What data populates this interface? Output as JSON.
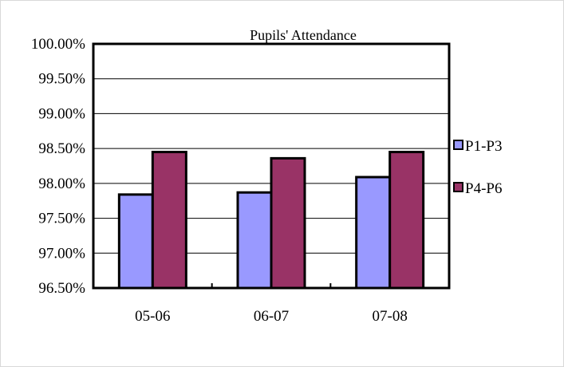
{
  "chart_data": {
    "type": "bar",
    "title": "Pupils' Attendance",
    "xlabel": "",
    "ylabel": "",
    "categories": [
      "05-06",
      "06-07",
      "07-08"
    ],
    "series": [
      {
        "name": "P1-P3",
        "values": [
          97.84,
          97.87,
          98.09
        ],
        "color": "#9999FF"
      },
      {
        "name": "P4-P6",
        "values": [
          98.45,
          98.36,
          98.45
        ],
        "color": "#993366"
      }
    ],
    "ylim": [
      96.5,
      100
    ],
    "yticks": [
      "96.50%",
      "97.00%",
      "97.50%",
      "98.00%",
      "98.50%",
      "99.00%",
      "99.50%",
      "100.00%"
    ],
    "grid": true,
    "legend_position": "right"
  }
}
